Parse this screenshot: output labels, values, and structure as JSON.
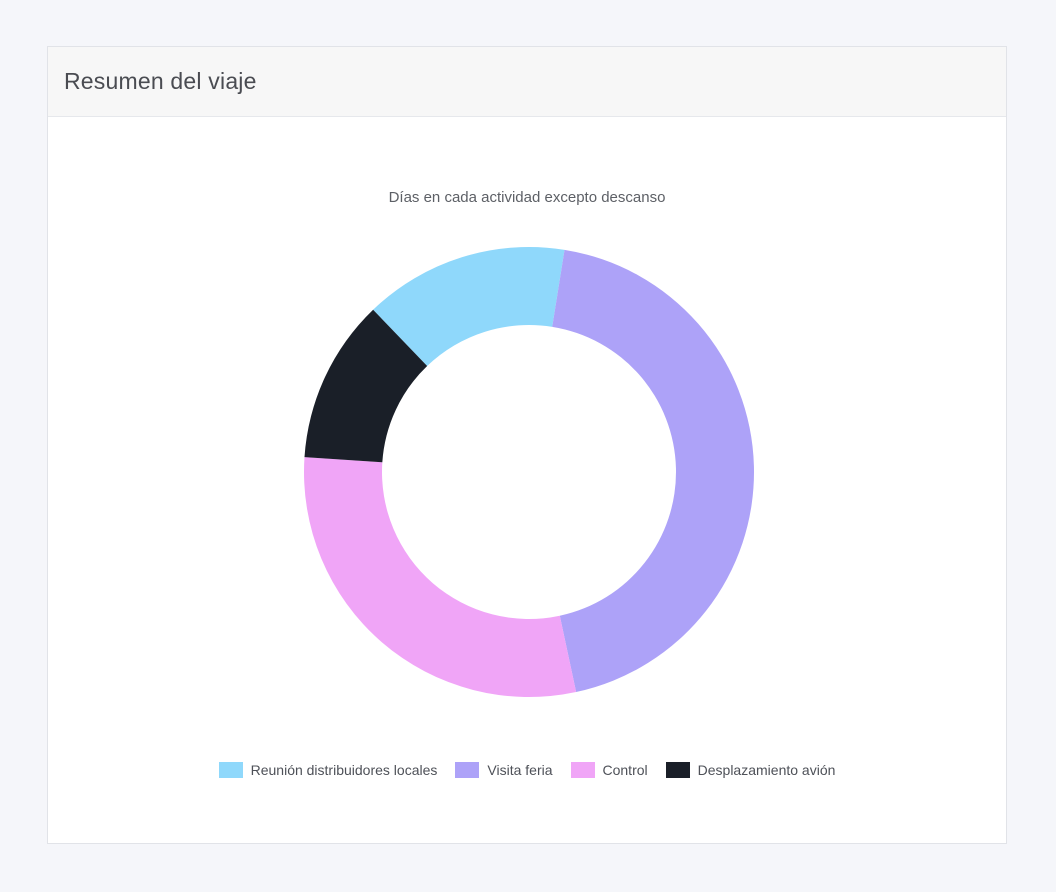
{
  "card": {
    "title": "Resumen del viaje"
  },
  "chart_data": {
    "type": "pie",
    "variant": "donut",
    "title": "Días en cada actividad excepto descanso",
    "categories": [
      "Reunión distribuidores locales",
      "Visita feria",
      "Control",
      "Desplazamiento avión"
    ],
    "values": [
      5,
      15,
      10,
      4
    ],
    "unit": "días",
    "colors": [
      "#8fd8fb",
      "#ada2f8",
      "#f0a5f7",
      "#1a1f28"
    ],
    "legend_position": "bottom"
  }
}
